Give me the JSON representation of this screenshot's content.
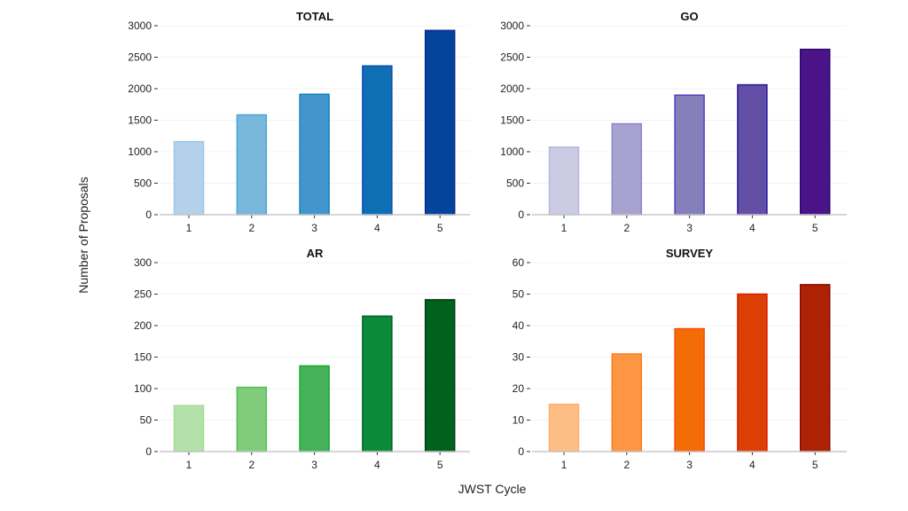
{
  "chart_data": [
    {
      "type": "bar",
      "title": "TOTAL",
      "categories": [
        "1",
        "2",
        "3",
        "4",
        "5"
      ],
      "values": [
        1160,
        1585,
        1912,
        2362,
        2925
      ],
      "ylim": [
        0,
        3000
      ],
      "yticks": [
        0,
        500,
        1000,
        1500,
        2000,
        2500,
        3000
      ],
      "fills": [
        "#b3d1ea",
        "#79b8da",
        "#4296cb",
        "#0f6fb5",
        "#04449a"
      ],
      "strokes": [
        "#9cc6e6",
        "#4aa8dc",
        "#1281c4",
        "#0a4fb0",
        "#062c8c"
      ]
    },
    {
      "type": "bar",
      "title": "GO",
      "categories": [
        "1",
        "2",
        "3",
        "4",
        "5"
      ],
      "values": [
        1073,
        1444,
        1898,
        2062,
        2625
      ],
      "ylim": [
        0,
        3000
      ],
      "yticks": [
        0,
        500,
        1000,
        1500,
        2000,
        2500,
        3000
      ],
      "fills": [
        "#cbcbe4",
        "#a6a3d1",
        "#8580bc",
        "#634fa6",
        "#4a1388"
      ],
      "strokes": [
        "#b8b8e0",
        "#8d87d2",
        "#4e44c0",
        "#2a1a9e",
        "#2a0a6e"
      ]
    },
    {
      "type": "bar",
      "title": "AR",
      "categories": [
        "1",
        "2",
        "3",
        "4",
        "5"
      ],
      "values": [
        73,
        102,
        136,
        215,
        241
      ],
      "ylim": [
        0,
        300
      ],
      "yticks": [
        0,
        50,
        100,
        150,
        200,
        250,
        300
      ],
      "fills": [
        "#b3e1a9",
        "#80cb7c",
        "#45b25a",
        "#0b8a3a",
        "#00621c"
      ],
      "strokes": [
        "#a2dc9a",
        "#4fc44f",
        "#16a82a",
        "#04602a",
        "#003a10"
      ]
    },
    {
      "type": "bar",
      "title": "SURVEY",
      "categories": [
        "1",
        "2",
        "3",
        "4",
        "5"
      ],
      "values": [
        15,
        31,
        39,
        50,
        53
      ],
      "ylim": [
        0,
        60
      ],
      "yticks": [
        0,
        10,
        20,
        30,
        40,
        50,
        60
      ],
      "fills": [
        "#fdbe86",
        "#fd9643",
        "#f46c06",
        "#dc4004",
        "#ad2204"
      ],
      "strokes": [
        "#fdb070",
        "#fb7e20",
        "#fc4a0a",
        "#e01a00",
        "#8a0e00"
      ]
    }
  ],
  "ylabel": "Number of Proposals",
  "xlabel": "JWST Cycle",
  "axis_color": "#c8c8c8",
  "grid": "faint horizontal"
}
